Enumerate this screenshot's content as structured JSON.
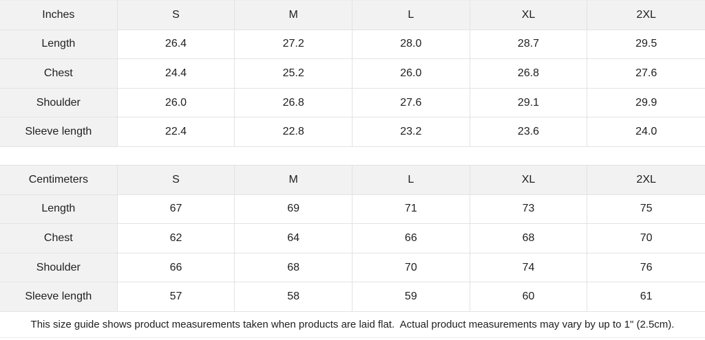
{
  "tables": [
    {
      "unit_label": "Inches",
      "sizes": [
        "S",
        "M",
        "L",
        "XL",
        "2XL"
      ],
      "rows": [
        {
          "label": "Length",
          "values": [
            "26.4",
            "27.2",
            "28.0",
            "28.7",
            "29.5"
          ]
        },
        {
          "label": "Chest",
          "values": [
            "24.4",
            "25.2",
            "26.0",
            "26.8",
            "27.6"
          ]
        },
        {
          "label": "Shoulder",
          "values": [
            "26.0",
            "26.8",
            "27.6",
            "29.1",
            "29.9"
          ]
        },
        {
          "label": "Sleeve length",
          "values": [
            "22.4",
            "22.8",
            "23.2",
            "23.6",
            "24.0"
          ]
        }
      ]
    },
    {
      "unit_label": "Centimeters",
      "sizes": [
        "S",
        "M",
        "L",
        "XL",
        "2XL"
      ],
      "rows": [
        {
          "label": "Length",
          "values": [
            "67",
            "69",
            "71",
            "73",
            "75"
          ]
        },
        {
          "label": "Chest",
          "values": [
            "62",
            "64",
            "66",
            "68",
            "70"
          ]
        },
        {
          "label": "Shoulder",
          "values": [
            "66",
            "68",
            "70",
            "74",
            "76"
          ]
        },
        {
          "label": "Sleeve length",
          "values": [
            "57",
            "58",
            "59",
            "60",
            "61"
          ]
        }
      ]
    }
  ],
  "footer": {
    "note": "This size guide shows product measurements taken when products are laid flat.  Actual product measurements may vary by up to 1\" (2.5cm)."
  },
  "colors": {
    "cell_bg": "#f2f2f2",
    "border": "#e3e3e3",
    "border_soft": "#ececec",
    "text": "#202020",
    "bg": "#ffffff"
  }
}
